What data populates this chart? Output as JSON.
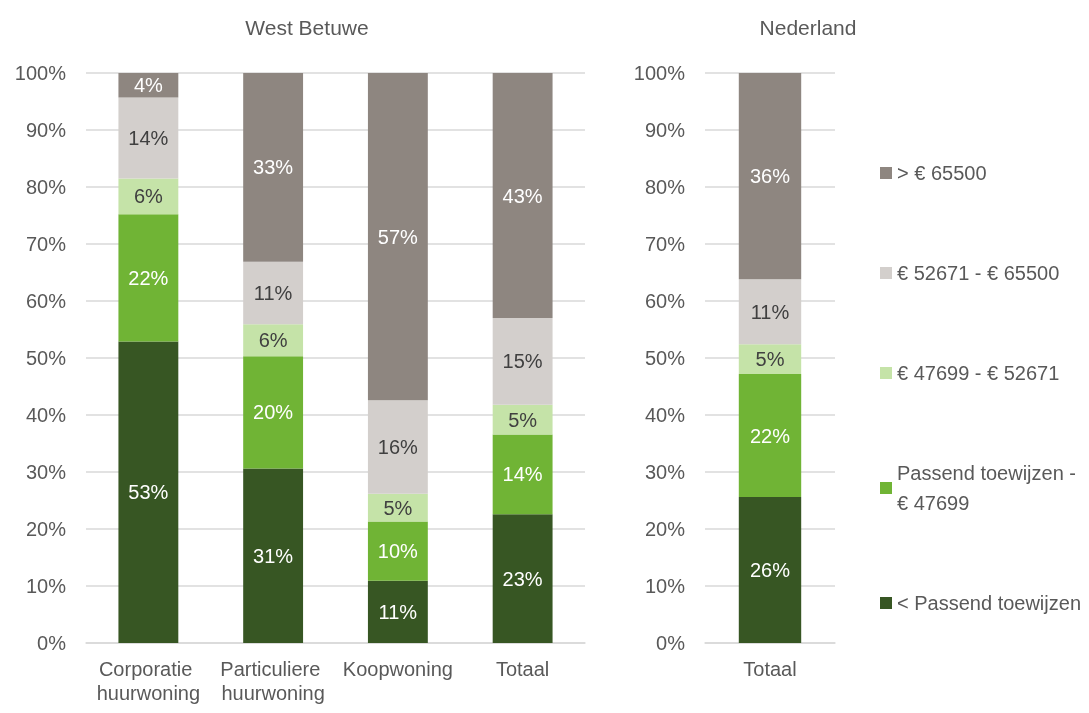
{
  "chart_data": [
    {
      "type": "bar",
      "title": "West Betuwe",
      "categories": [
        "Corporatie huurwoning",
        "Particuliere huurwoning",
        "Koopwoning",
        "Totaal"
      ],
      "stacked": true,
      "series": [
        {
          "color": "#375623",
          "values": [
            52.9,
            30.6,
            10.9,
            22.6
          ],
          "value_labels": [
            "53%",
            "31%",
            "11%",
            "23%"
          ]
        },
        {
          "color": "#70b435",
          "values": [
            22.3,
            19.7,
            10.4,
            14.0
          ],
          "value_labels": [
            "22%",
            "20%",
            "10%",
            "14%"
          ]
        },
        {
          "color": "#c5e3a8",
          "values": [
            6.3,
            5.6,
            4.9,
            5.2
          ],
          "value_labels": [
            "6%",
            "6%",
            "5%",
            "5%"
          ]
        },
        {
          "color": "#d3cfcc",
          "values": [
            14.2,
            11.0,
            16.4,
            15.2
          ],
          "value_labels": [
            "14%",
            "11%",
            "16%",
            "15%"
          ]
        },
        {
          "color": "#8e8680",
          "values": [
            4.3,
            33.1,
            57.4,
            43.0
          ],
          "value_labels": [
            "4%",
            "33%",
            "57%",
            "43%"
          ]
        }
      ],
      "ylim": [
        0,
        100
      ],
      "yticks": [
        {
          "value": 0,
          "label": "0%"
        },
        {
          "value": 10,
          "label": "10%"
        },
        {
          "value": 20,
          "label": "20%"
        },
        {
          "value": 30,
          "label": "30%"
        },
        {
          "value": 40,
          "label": "40%"
        },
        {
          "value": 50,
          "label": "50%"
        },
        {
          "value": 60,
          "label": "60%"
        },
        {
          "value": 70,
          "label": "70%"
        },
        {
          "value": 80,
          "label": "80%"
        },
        {
          "value": 90,
          "label": "90%"
        },
        {
          "value": 100,
          "label": "100%"
        }
      ],
      "grid": "y"
    },
    {
      "type": "bar",
      "title": "Nederland",
      "categories": [
        "Totaal"
      ],
      "stacked": true,
      "series": [
        {
          "name": "< Passend toewijzen",
          "color": "#375623",
          "values": [
            25.6
          ],
          "value_labels": [
            "26%"
          ]
        },
        {
          "name": "Passend toewijzen - € 47699",
          "color": "#70b435",
          "values": [
            21.6
          ],
          "value_labels": [
            "22%"
          ]
        },
        {
          "name": "€ 47699 - € 52671",
          "color": "#c5e3a8",
          "values": [
            5.2
          ],
          "value_labels": [
            "5%"
          ]
        },
        {
          "name": "€ 52671 - € 65500",
          "color": "#d3cfcc",
          "values": [
            11.4
          ],
          "value_labels": [
            "11%"
          ]
        },
        {
          "name": "> € 65500",
          "color": "#8e8680",
          "values": [
            36.2
          ],
          "value_labels": [
            "36%"
          ]
        }
      ],
      "ylim": [
        0,
        100
      ],
      "yticks": [
        {
          "value": 0,
          "label": "0%"
        },
        {
          "value": 10,
          "label": "10%"
        },
        {
          "value": 20,
          "label": "20%"
        },
        {
          "value": 30,
          "label": "30%"
        },
        {
          "value": 40,
          "label": "40%"
        },
        {
          "value": 50,
          "label": "50%"
        },
        {
          "value": 60,
          "label": "60%"
        },
        {
          "value": 70,
          "label": "70%"
        },
        {
          "value": 80,
          "label": "80%"
        },
        {
          "value": 90,
          "label": "90%"
        },
        {
          "value": 100,
          "label": "100%"
        }
      ],
      "grid": "y",
      "legend": "right"
    }
  ]
}
